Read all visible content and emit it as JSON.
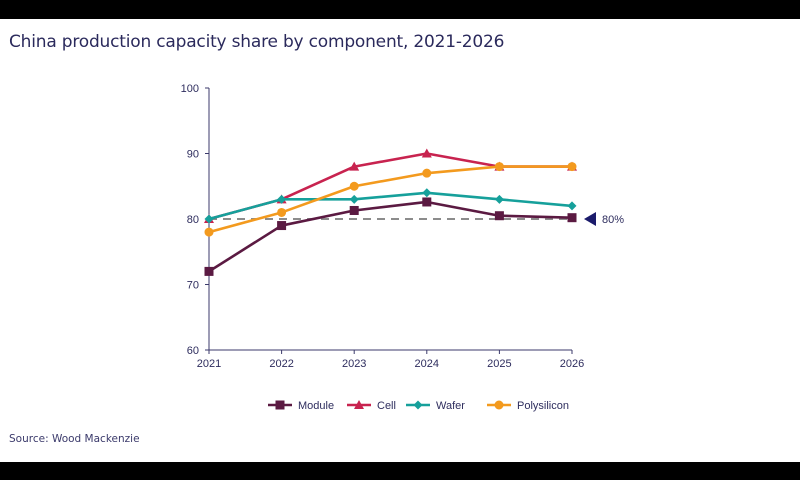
{
  "title": "China production capacity share by component, 2021-2026",
  "source": "Source: Wood Mackenzie",
  "chart_data": {
    "type": "line",
    "title": "China production capacity share by component, 2021-2026",
    "xlabel": "",
    "ylabel": "",
    "x": [
      "2021",
      "2022",
      "2023",
      "2024",
      "2025",
      "2026"
    ],
    "ylim": [
      60,
      100
    ],
    "yticks": [
      60,
      70,
      80,
      90,
      100
    ],
    "grid": false,
    "legend": "bottom",
    "series": [
      {
        "name": "Module",
        "color": "#5b1a42",
        "marker": "square",
        "values": [
          72,
          79,
          81.3,
          82.6,
          80.5,
          80.2
        ]
      },
      {
        "name": "Cell",
        "color": "#c8234f",
        "marker": "triangle",
        "values": [
          80,
          83,
          88,
          90,
          88,
          88
        ]
      },
      {
        "name": "Wafer",
        "color": "#16a09b",
        "marker": "diamond",
        "values": [
          80,
          83,
          83,
          84,
          83,
          82
        ]
      },
      {
        "name": "Polysilicon",
        "color": "#f39a1e",
        "marker": "circle",
        "values": [
          78,
          81,
          85,
          87,
          88,
          88
        ]
      }
    ],
    "reference_line": {
      "value": 80,
      "label": "80%",
      "color": "#8c8c8c",
      "marker_color": "#1b1b6b"
    }
  }
}
